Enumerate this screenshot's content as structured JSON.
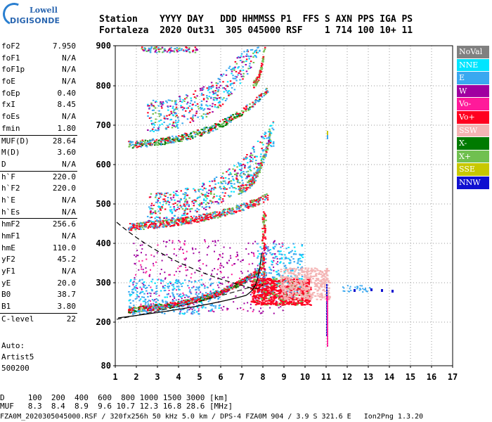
{
  "logo": {
    "line1": "Lowell",
    "line2": "DIGISONDE"
  },
  "header": {
    "line1": "Station    YYYY DAY   DDD HHMMSS P1  FFS S AXN PPS IGA PS",
    "line2": "Fortaleza  2020 Out31  305 045000 RSF    1 714 100 10+ 11"
  },
  "params": [
    {
      "label": "foF2",
      "value": "7.950"
    },
    {
      "label": "foF1",
      "value": "N/A"
    },
    {
      "label": "foF1p",
      "value": "N/A"
    },
    {
      "label": "foE",
      "value": "N/A"
    },
    {
      "label": "foEp",
      "value": "0.40"
    },
    {
      "label": "fxI",
      "value": "8.45"
    },
    {
      "label": "foEs",
      "value": "N/A"
    },
    {
      "label": "fmin",
      "value": "1.80"
    },
    {
      "label": "MUF(D)",
      "value": "28.64"
    },
    {
      "label": "M(D)",
      "value": "3.60"
    },
    {
      "label": "D",
      "value": "N/A"
    },
    {
      "label": "h`F",
      "value": "220.0"
    },
    {
      "label": "h`F2",
      "value": "220.0"
    },
    {
      "label": "h`E",
      "value": "N/A"
    },
    {
      "label": "h`Es",
      "value": "N/A"
    },
    {
      "label": "hmF2",
      "value": "256.6"
    },
    {
      "label": "hmF1",
      "value": "N/A"
    },
    {
      "label": "hmE",
      "value": "110.0"
    },
    {
      "label": "yF2",
      "value": "45.2"
    },
    {
      "label": "yF1",
      "value": "N/A"
    },
    {
      "label": "yE",
      "value": "20.0"
    },
    {
      "label": "B0",
      "value": "38.7"
    },
    {
      "label": "B1",
      "value": "3.80"
    },
    {
      "label": "C-level",
      "value": "22"
    }
  ],
  "auto": {
    "line1": "Auto:",
    "line2": "Artist5",
    "line3": "500200"
  },
  "legend": [
    {
      "label": "NoVal",
      "color": "#808080"
    },
    {
      "label": "NNE",
      "color": "#00e5ff"
    },
    {
      "label": "E",
      "color": "#3aa8f0"
    },
    {
      "label": "W",
      "color": "#a000a0"
    },
    {
      "label": "Vo-",
      "color": "#ff1a9a"
    },
    {
      "label": "Vo+",
      "color": "#ff0020"
    },
    {
      "label": "SSW",
      "color": "#f4b4b4"
    },
    {
      "label": "X-",
      "color": "#007a00"
    },
    {
      "label": "X+",
      "color": "#70c050"
    },
    {
      "label": "SSE",
      "color": "#c8c800"
    },
    {
      "label": "NNW",
      "color": "#1010d0"
    }
  ],
  "axes": {
    "y_ticks": [
      "900",
      "800",
      "700",
      "600",
      "500",
      "400",
      "300",
      "200",
      "80"
    ],
    "x_ticks": [
      "1",
      "2",
      "3",
      "4",
      "5",
      "6",
      "7",
      "8",
      "9",
      "10",
      "11",
      "12",
      "13",
      "14",
      "15",
      "16",
      "17"
    ]
  },
  "bottom": {
    "line1": "D     100  200  400  600  800 1000 1500 3000 [km]",
    "line2": "MUF   8.3  8.4  8.9  9.6 10.7 12.3 16.8 28.6 [MHz]",
    "line3": "FZA0M_2020305045000.RSF / 320fx256h 50 kHz 5.0 km / DPS-4 FZA0M 904 / 3.9 S 321.6 E   Ion2Png 1.3.20"
  }
}
